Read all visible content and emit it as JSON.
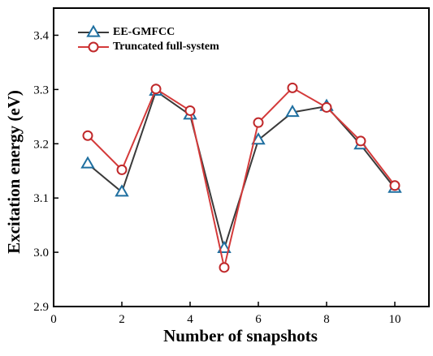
{
  "chart_data": {
    "type": "line",
    "xlabel": "Number of snapshots",
    "ylabel": "Excitation energy (eV)",
    "xlim": [
      0,
      11
    ],
    "ylim": [
      2.9,
      3.45
    ],
    "xticks": [
      0,
      2,
      4,
      6,
      8,
      10
    ],
    "yticks": [
      2.9,
      3.0,
      3.1,
      3.2,
      3.3,
      3.4
    ],
    "x_tick_labels": [
      "0",
      "2",
      "4",
      "6",
      "8",
      "10"
    ],
    "y_tick_labels": [
      "2.9",
      "3.0",
      "3.1",
      "3.2",
      "3.3",
      "3.4"
    ],
    "grid": false,
    "legend_position": "top-left",
    "x": [
      1,
      2,
      3,
      4,
      5,
      6,
      7,
      8,
      9,
      10
    ],
    "series": [
      {
        "name": "EE-GMFCC",
        "marker": "triangle",
        "line_color": "#3a3a3a",
        "marker_color": "#1f6fa0",
        "values": [
          3.163,
          3.111,
          3.297,
          3.253,
          3.007,
          3.207,
          3.258,
          3.269,
          3.198,
          3.118
        ]
      },
      {
        "name": "Truncated full-system",
        "marker": "circle",
        "line_color": "#d43a3a",
        "marker_color": "#c0282a",
        "values": [
          3.215,
          3.152,
          3.301,
          3.261,
          2.972,
          3.239,
          3.303,
          3.267,
          3.205,
          3.123
        ]
      }
    ]
  }
}
